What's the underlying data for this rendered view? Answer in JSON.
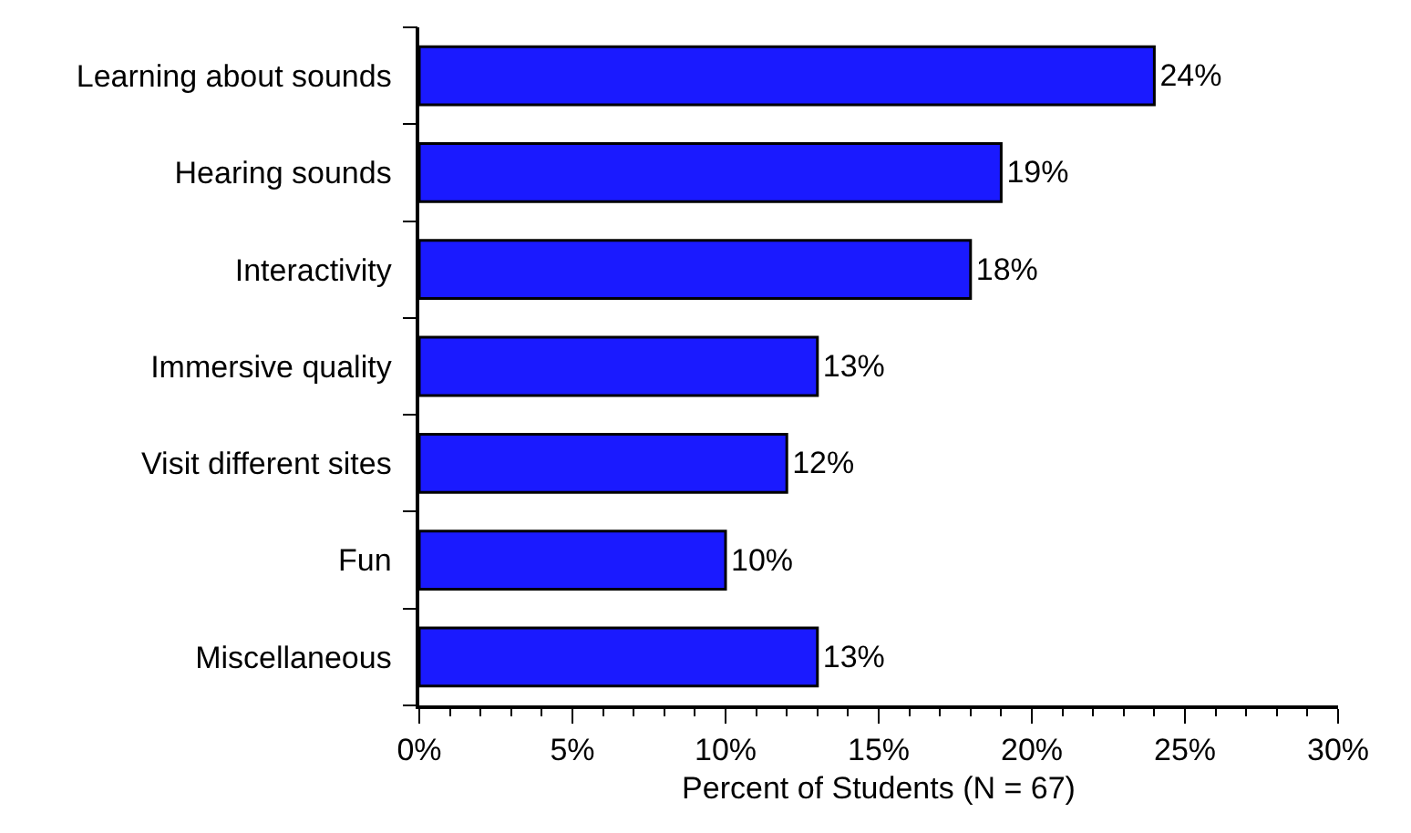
{
  "chart_data": {
    "type": "bar",
    "orientation": "horizontal",
    "xlabel": "Percent of Students (N = 67)",
    "categories": [
      "Learning about sounds",
      "Hearing sounds",
      "Interactivity",
      "Immersive quality",
      "Visit different sites",
      "Fun",
      "Miscellaneous"
    ],
    "values": [
      24,
      19,
      18,
      13,
      12,
      10,
      13
    ],
    "value_labels": [
      "24%",
      "19%",
      "18%",
      "13%",
      "12%",
      "10%",
      "13%"
    ],
    "color": "#1a1aff",
    "xlim": [
      0,
      30
    ],
    "xticks": [
      {
        "value": 0,
        "label": "0%"
      },
      {
        "value": 5,
        "label": "5%"
      },
      {
        "value": 10,
        "label": "10%"
      },
      {
        "value": 15,
        "label": "15%"
      },
      {
        "value": 20,
        "label": "20%"
      },
      {
        "value": 25,
        "label": "25%"
      },
      {
        "value": 30,
        "label": "30%"
      }
    ],
    "legend": false
  }
}
